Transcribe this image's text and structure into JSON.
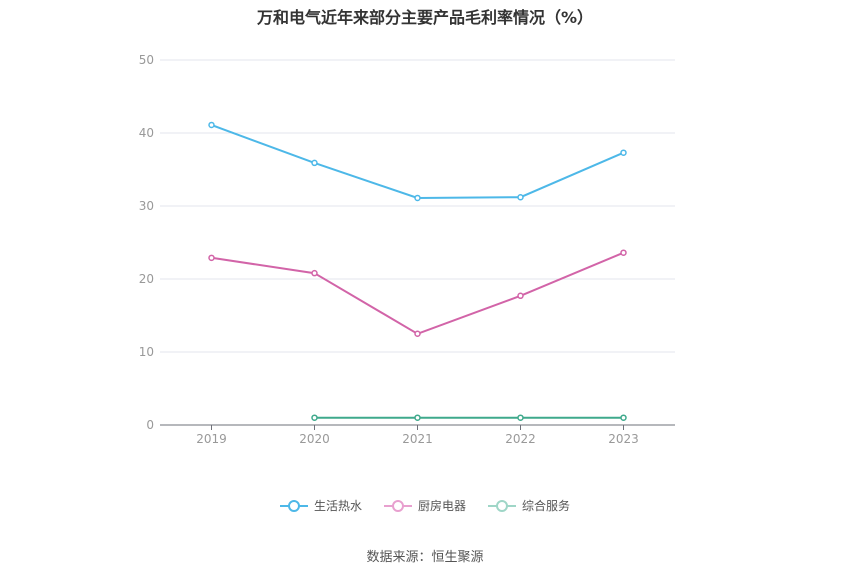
{
  "chart_data": {
    "type": "line",
    "title": "万和电气近年来部分主要产品毛利率情况（%）",
    "categories": [
      "2019",
      "2020",
      "2021",
      "2022",
      "2023"
    ],
    "ylim": [
      0,
      50
    ],
    "yticks": [
      0,
      10,
      20,
      30,
      40,
      50
    ],
    "grid": true,
    "legend_position": "bottom",
    "series": [
      {
        "name": "生活热水",
        "color": "#4db8e8",
        "values": [
          41.1,
          35.9,
          31.1,
          31.2,
          37.3
        ]
      },
      {
        "name": "厨房电器",
        "color": "#d264a8",
        "values": [
          22.9,
          20.8,
          12.5,
          17.7,
          23.6
        ]
      },
      {
        "name": "综合服务",
        "color": "#3fa98c",
        "values": [
          null,
          1.0,
          1.0,
          1.0,
          1.0
        ]
      }
    ]
  },
  "source": "数据来源：恒生聚源"
}
